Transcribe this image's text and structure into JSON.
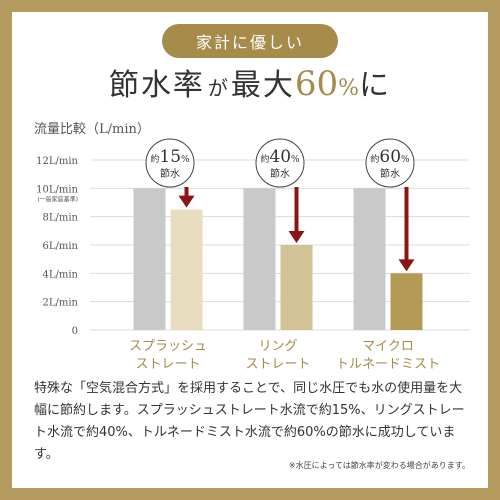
{
  "badge": "家計に優しい",
  "headline": {
    "part1": "節水率",
    "part2": "が",
    "part3": "最大",
    "number": "60",
    "unit": "%",
    "part4": "に"
  },
  "chart_data": {
    "type": "bar",
    "ylabel": "流量比較（L/min）",
    "ylim": [
      0,
      12
    ],
    "y_ticks": [
      {
        "value": 12,
        "label": "12L/min"
      },
      {
        "value": 10,
        "label": "10L/min",
        "sublabel": "(一般家庭基準)"
      },
      {
        "value": 8,
        "label": "8L/min"
      },
      {
        "value": 6,
        "label": "6L/min"
      },
      {
        "value": 4,
        "label": "4L/min"
      },
      {
        "value": 2,
        "label": "2L/min"
      },
      {
        "value": 0,
        "label": "0"
      }
    ],
    "grid": true,
    "groups": [
      {
        "label_lines": [
          "スプラッシュ",
          "ストレート"
        ],
        "baseline": 10,
        "value": 8.5,
        "saving_prefix": "約",
        "saving_number": "15",
        "saving_unit": "%",
        "saving_text": "節水"
      },
      {
        "label_lines": [
          "リング",
          "ストレート"
        ],
        "baseline": 10,
        "value": 6,
        "saving_prefix": "約",
        "saving_number": "40",
        "saving_unit": "%",
        "saving_text": "節水"
      },
      {
        "label_lines": [
          "マイクロ",
          "トルネードミスト"
        ],
        "baseline": 10,
        "value": 4,
        "saving_prefix": "約",
        "saving_number": "60",
        "saving_unit": "%",
        "saving_text": "節水"
      }
    ],
    "colors": {
      "baseline": "#c9c9c9",
      "reduced": [
        "#e8dcc0",
        "#d3c296",
        "#b49b55"
      ],
      "arrow": "#8b1414",
      "label": "#a68b4b"
    }
  },
  "description": "特殊な「空気混合方式」を採用することで、同じ水圧でも水の使用量を大幅に節約します。スプラッシュストレート水流で約15%、リングストレート水流で約40%、トルネードミスト水流で約60%の節水に成功しています。",
  "note": "※水圧によっては節水率が変わる場合があります。"
}
